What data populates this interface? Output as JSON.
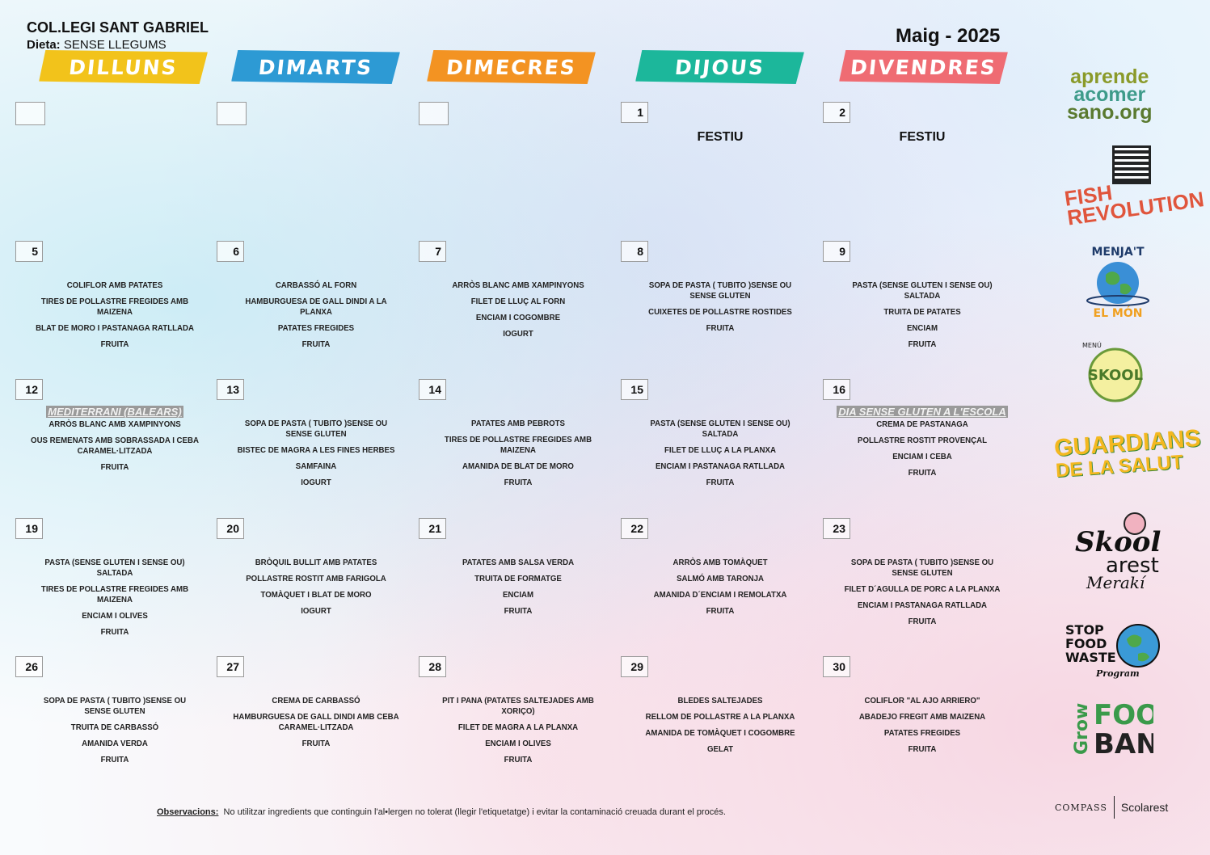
{
  "header": {
    "school": "COL.LEGI SANT GABRIEL",
    "diet_label": "Dieta:",
    "diet_value": "SENSE LLEGUMS",
    "month": "Maig - 2025"
  },
  "days": [
    {
      "label": "DILLUNS",
      "color": "#f2c31b"
    },
    {
      "label": "DIMARTS",
      "color": "#2d9ad4"
    },
    {
      "label": "DIMECRES",
      "color": "#f39322"
    },
    {
      "label": "DIJOUS",
      "color": "#1cb79b"
    },
    {
      "label": "DIVENDRES",
      "color": "#ef6c73"
    }
  ],
  "weeks": [
    [
      {
        "num": "",
        "items": []
      },
      {
        "num": "",
        "items": []
      },
      {
        "num": "",
        "items": []
      },
      {
        "num": "1",
        "festiu": "FESTIU",
        "items": []
      },
      {
        "num": "2",
        "festiu": "FESTIU",
        "items": []
      }
    ],
    [
      {
        "num": "5",
        "items": [
          "COLIFLOR AMB PATATES",
          "TIRES DE POLLASTRE FREGIDES AMB MAIZENA",
          "BLAT DE MORO I PASTANAGA RATLLADA",
          "FRUITA"
        ]
      },
      {
        "num": "6",
        "items": [
          "CARBASSÓ AL FORN",
          "HAMBURGUESA DE GALL DINDI A LA PLANXA",
          "PATATES FREGIDES",
          "FRUITA"
        ]
      },
      {
        "num": "7",
        "items": [
          "ARRÒS BLANC AMB XAMPINYONS",
          "FILET DE LLUÇ AL FORN",
          "ENCIAM I COGOMBRE",
          "IOGURT"
        ]
      },
      {
        "num": "8",
        "items": [
          "SOPA DE PASTA ( TUBITO )SENSE OU SENSE GLUTEN",
          "CUIXETES DE POLLASTRE ROSTIDES",
          "FRUITA"
        ]
      },
      {
        "num": "9",
        "items": [
          "PASTA (SENSE GLUTEN I SENSE OU) SALTADA",
          "TRUITA DE PATATES",
          "ENCIAM",
          "FRUITA"
        ]
      }
    ],
    [
      {
        "num": "12",
        "theme": "MEDITERRANI (BALEARS)",
        "items": [
          "ARRÒS BLANC AMB XAMPINYONS",
          "OUS REMENATS AMB SOBRASSADA I CEBA CARAMEL·LITZADA",
          "FRUITA"
        ]
      },
      {
        "num": "13",
        "items": [
          "SOPA DE PASTA ( TUBITO )SENSE OU SENSE GLUTEN",
          "BISTEC DE MAGRA A LES FINES HERBES",
          "SAMFAINA",
          "IOGURT"
        ]
      },
      {
        "num": "14",
        "items": [
          "PATATES AMB PEBROTS",
          "TIRES DE POLLASTRE FREGIDES AMB MAIZENA",
          "AMANIDA DE BLAT DE MORO",
          "FRUITA"
        ]
      },
      {
        "num": "15",
        "items": [
          "PASTA (SENSE GLUTEN I SENSE OU) SALTADA",
          "FILET DE LLUÇ A LA PLANXA",
          "ENCIAM I PASTANAGA RATLLADA",
          "FRUITA"
        ]
      },
      {
        "num": "16",
        "theme": "DIA SENSE GLUTEN A L'ESCOLA",
        "items": [
          "CREMA DE PASTANAGA",
          "POLLASTRE ROSTIT PROVENÇAL",
          "ENCIAM I CEBA",
          "FRUITA"
        ]
      }
    ],
    [
      {
        "num": "19",
        "items": [
          "PASTA (SENSE GLUTEN I SENSE OU) SALTADA",
          "TIRES DE POLLASTRE FREGIDES AMB MAIZENA",
          "ENCIAM I OLIVES",
          "FRUITA"
        ]
      },
      {
        "num": "20",
        "items": [
          "BRÒQUIL BULLIT AMB PATATES",
          "POLLASTRE ROSTIT AMB FARIGOLA",
          "TOMÀQUET I BLAT DE MORO",
          "IOGURT"
        ]
      },
      {
        "num": "21",
        "items": [
          "PATATES AMB SALSA VERDA",
          "TRUITA DE FORMATGE",
          "ENCIAM",
          "FRUITA"
        ]
      },
      {
        "num": "22",
        "items": [
          "ARRÒS AMB TOMÀQUET",
          "SALMÓ AMB TARONJA",
          "AMANIDA D´ENCIAM I REMOLATXA",
          "FRUITA"
        ]
      },
      {
        "num": "23",
        "items": [
          "SOPA DE PASTA ( TUBITO )SENSE OU SENSE GLUTEN",
          "FILET D´AGULLA DE PORC A LA PLANXA",
          "ENCIAM I PASTANAGA RATLLADA",
          "FRUITA"
        ]
      }
    ],
    [
      {
        "num": "26",
        "items": [
          "SOPA DE PASTA ( TUBITO )SENSE OU SENSE GLUTEN",
          "TRUITA DE CARBASSÓ",
          "AMANIDA VERDA",
          "FRUITA"
        ]
      },
      {
        "num": "27",
        "items": [
          "CREMA DE CARBASSÓ",
          "HAMBURGUESA DE GALL DINDI AMB CEBA CARAMEL·LITZADA",
          "FRUITA"
        ]
      },
      {
        "num": "28",
        "items": [
          "PIT I PANA (PATATES SALTEJADES AMB XORIÇO)",
          "FILET DE MAGRA A LA PLANXA",
          "ENCIAM I OLIVES",
          "FRUITA"
        ]
      },
      {
        "num": "29",
        "items": [
          "BLEDES SALTEJADES",
          "RELLOM DE POLLASTRE A LA PLANXA",
          "AMANIDA DE TOMÀQUET I COGOMBRE",
          "GELAT"
        ]
      },
      {
        "num": "30",
        "items": [
          "COLIFLOR \"AL AJO ARRIERO\"",
          "ABADEJO FREGIT AMB MAIZENA",
          "PATATES FREGIDES",
          "FRUITA"
        ]
      }
    ]
  ],
  "logos": {
    "aprende": [
      "aprende",
      "acomer",
      "sano.org"
    ],
    "fish": [
      "FISH",
      "REVOLUTION"
    ],
    "menjat": [
      "MENJA'T",
      "EL MÓN"
    ],
    "skool_menu": [
      "MENÚ",
      "SKOOL"
    ],
    "guardians": [
      "GUARDIANS",
      "DE LA SALUT"
    ],
    "skoolarest": [
      "Skool",
      "arest",
      "Merakí"
    ],
    "stop": [
      "STOP",
      "FOOD",
      "WASTE",
      "Program"
    ],
    "grow": [
      "Grow",
      "FOOD",
      "BANKS"
    ],
    "compass": "COMPASS",
    "scolarest": "Scolarest"
  },
  "footer": {
    "label": "Observacions:",
    "text": "No utilitzar ingredients que continguin l'al•lergen no tolerat (llegir l'etiquetatge) i evitar la contaminació creuada durant el procés."
  }
}
